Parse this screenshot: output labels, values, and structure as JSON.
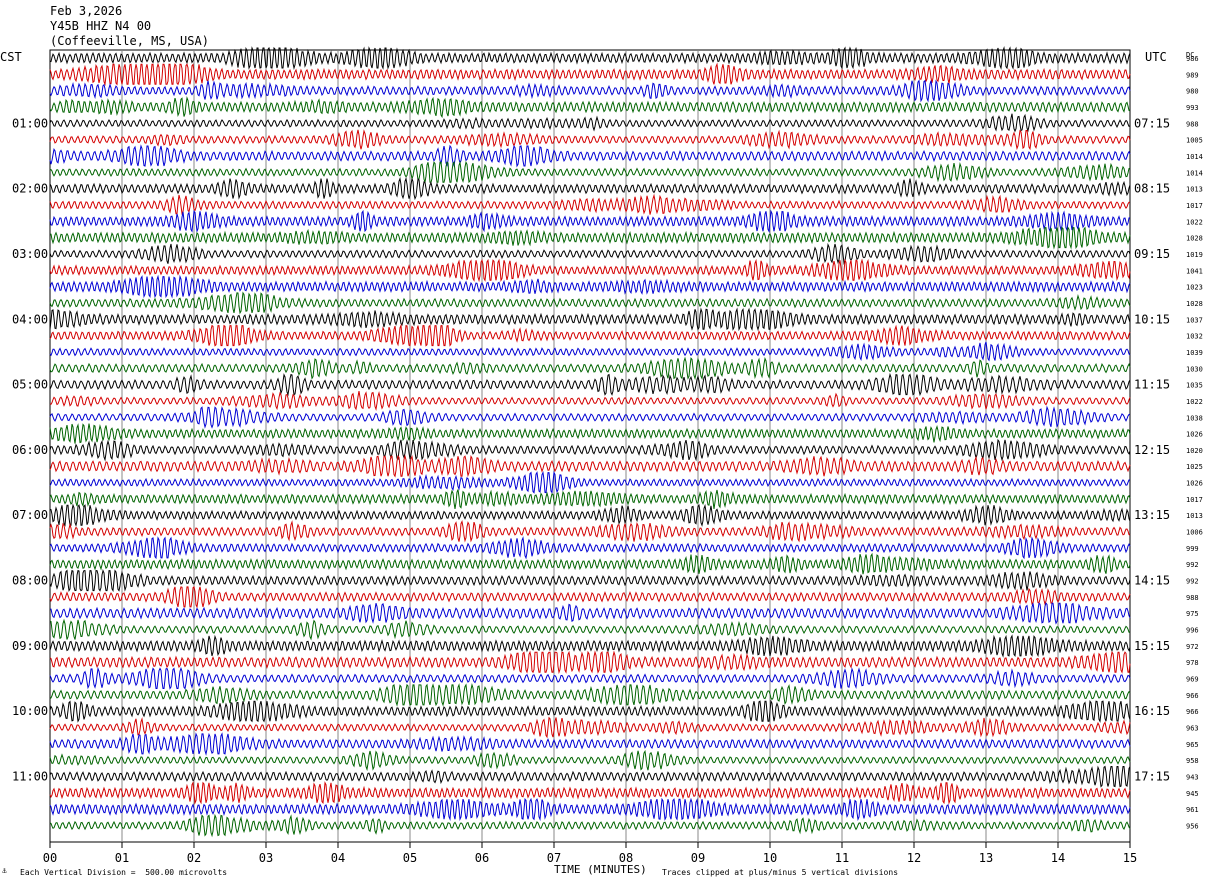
{
  "header": {
    "date": "Feb 3,2026",
    "station": "Y45B HHZ N4 00",
    "location": "(Coffeeville, MS, USA)"
  },
  "left_axis_title": "CST",
  "right_axis_title": "UTC",
  "dc_header": "DC",
  "footer": {
    "scale_note": "Each Vertical Division =  500.00 microvolts",
    "xlabel": "TIME (MINUTES)",
    "clip_note": "Traces clipped at plus/minus 5 vertical divisions"
  },
  "colors": {
    "trace_cycle": [
      "#000000",
      "#d40000",
      "#0000d4",
      "#006400"
    ],
    "grid": "#888888"
  },
  "chart_data": {
    "type": "line",
    "description_kind": "helicorder",
    "xlabel": "TIME (MINUTES)",
    "xlim": [
      0,
      15
    ],
    "x_ticks": [
      "00",
      "01",
      "02",
      "03",
      "04",
      "05",
      "06",
      "07",
      "08",
      "09",
      "10",
      "11",
      "12",
      "13",
      "14",
      "15"
    ],
    "left_time_labels": [
      {
        "row": 4,
        "label": "01:00"
      },
      {
        "row": 8,
        "label": "02:00"
      },
      {
        "row": 12,
        "label": "03:00"
      },
      {
        "row": 16,
        "label": "04:00"
      },
      {
        "row": 20,
        "label": "05:00"
      },
      {
        "row": 24,
        "label": "06:00"
      },
      {
        "row": 28,
        "label": "07:00"
      },
      {
        "row": 32,
        "label": "08:00"
      },
      {
        "row": 36,
        "label": "09:00"
      },
      {
        "row": 40,
        "label": "10:00"
      },
      {
        "row": 44,
        "label": "11:00"
      }
    ],
    "right_time_labels": [
      {
        "row": 4,
        "label": "07:15"
      },
      {
        "row": 8,
        "label": "08:15"
      },
      {
        "row": 12,
        "label": "09:15"
      },
      {
        "row": 16,
        "label": "10:15"
      },
      {
        "row": 20,
        "label": "11:15"
      },
      {
        "row": 24,
        "label": "12:15"
      },
      {
        "row": 28,
        "label": "13:15"
      },
      {
        "row": 32,
        "label": "14:15"
      },
      {
        "row": 36,
        "label": "15:15"
      },
      {
        "row": 40,
        "label": "16:15"
      },
      {
        "row": 44,
        "label": "17:15"
      }
    ],
    "dc_offsets": [
      986,
      989,
      980,
      993,
      988,
      1005,
      1014,
      1014,
      1013,
      1017,
      1022,
      1028,
      1019,
      1041,
      1023,
      1028,
      1037,
      1032,
      1039,
      1030,
      1035,
      1022,
      1038,
      1026,
      1020,
      1025,
      1026,
      1017,
      1013,
      1006,
      999,
      992,
      992,
      988,
      975,
      996,
      972,
      978,
      969,
      966,
      966,
      963,
      965,
      958,
      943,
      945,
      961,
      956
    ],
    "trace_count": 48,
    "minutes_per_trace": 15
  }
}
